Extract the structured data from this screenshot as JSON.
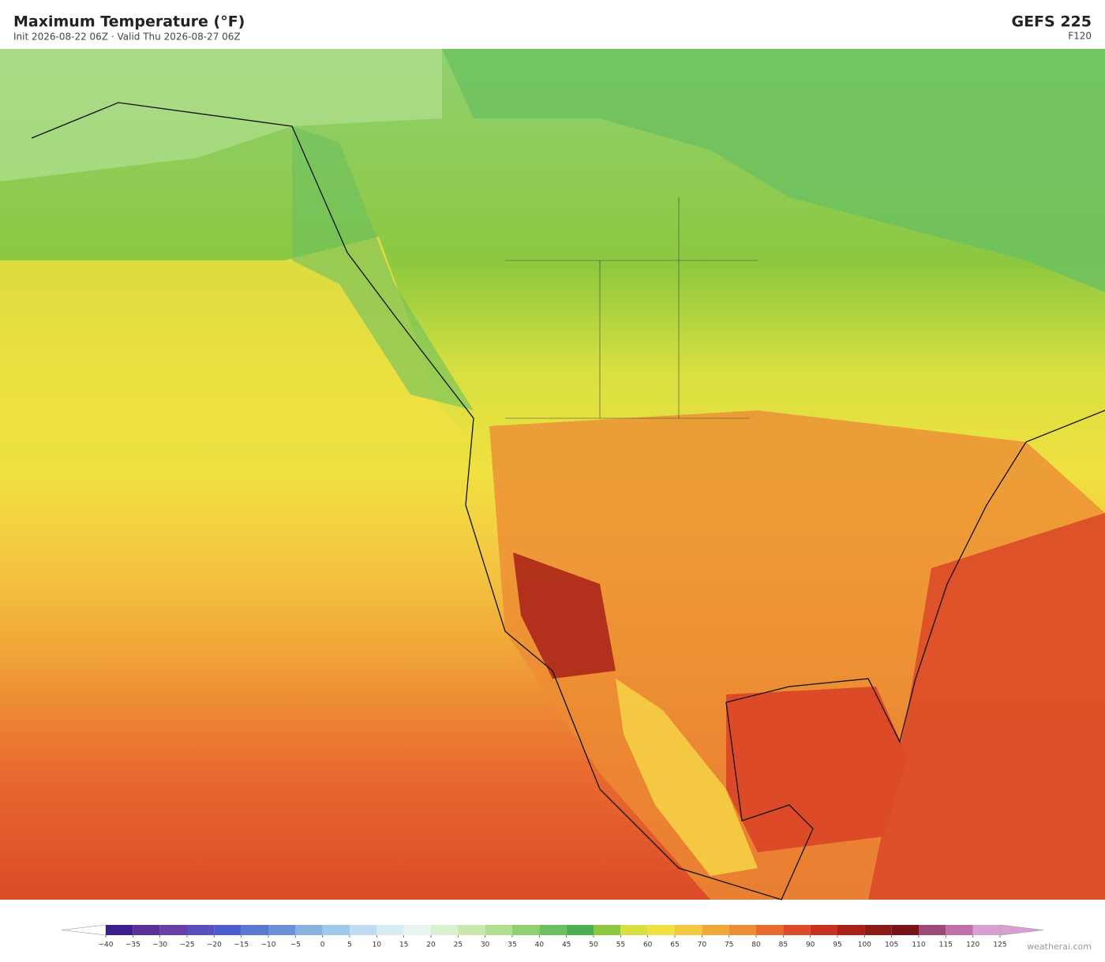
{
  "header": {
    "title": "Maximum Temperature  (°F)",
    "subtitle": "Init 2026-08-22 06Z  ·  Valid Thu 2026-08-27 06Z",
    "model": "GEFS  225",
    "forecast_hour": "F120"
  },
  "colorbar": {
    "range": [
      -40,
      125
    ],
    "ticks": [
      {
        "value": -40,
        "label": "−40"
      },
      {
        "value": -35,
        "label": "−35"
      },
      {
        "value": -30,
        "label": "−30"
      },
      {
        "value": -25,
        "label": "−25"
      },
      {
        "value": -20,
        "label": "−20"
      },
      {
        "value": -15,
        "label": "−15"
      },
      {
        "value": -10,
        "label": "−10"
      },
      {
        "value": -5,
        "label": "−5"
      },
      0,
      5,
      10,
      15,
      20,
      25,
      30,
      35,
      40,
      45,
      50,
      55,
      60,
      65,
      70,
      75,
      80,
      85,
      90,
      95,
      100,
      105,
      110,
      115,
      120,
      125
    ],
    "colors": [
      "#3b1f8c",
      "#5a2f9a",
      "#6a40a8",
      "#5a4fc0",
      "#4a5ed0",
      "#5a78d0",
      "#6a90d8",
      "#8ab0e0",
      "#a0c8e8",
      "#c0dcf0",
      "#d8ecf4",
      "#e8f4f0",
      "#d8f0d0",
      "#c8e8b0",
      "#b0e090",
      "#90d070",
      "#6cc060",
      "#4caf50",
      "#8cc840",
      "#d8e040",
      "#f0e040",
      "#f5c842",
      "#f0a838",
      "#ec8c34",
      "#e86a30",
      "#dc4a28",
      "#c83020",
      "#a82018",
      "#8c1818",
      "#781418",
      "#a04878",
      "#c070a8",
      "#d8a0d0"
    ],
    "under_color": "#ffffff",
    "over_color": "#d8a0d0"
  },
  "credit": "weatherai.com"
}
